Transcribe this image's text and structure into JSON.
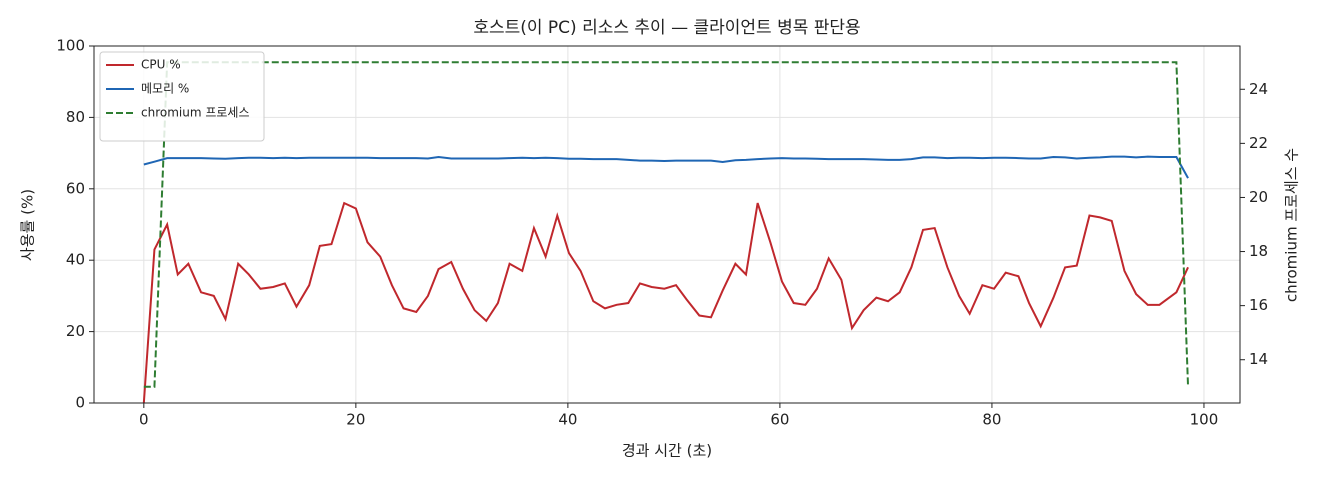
{
  "chart_data": {
    "type": "line",
    "title": "호스트(이 PC) 리소스 추이 — 클라이언트 병목 판단용",
    "xlabel": "경과 시간 (초)",
    "ylabel": "사용률 (%)",
    "y2label": "chromium 프로세스 수",
    "x": [
      0,
      1.0,
      2.2,
      3.2,
      4.2,
      5.4,
      6.6,
      7.7,
      8.9,
      9.9,
      11.0,
      12.2,
      13.3,
      14.4,
      15.6,
      16.6,
      17.7,
      18.9,
      20.0,
      21.1,
      22.3,
      23.4,
      24.5,
      25.7,
      26.8,
      27.8,
      29.0,
      30.1,
      31.2,
      32.3,
      33.4,
      34.5,
      35.7,
      36.8,
      37.9,
      39.0,
      40.1,
      41.2,
      42.4,
      43.5,
      44.6,
      45.7,
      46.8,
      47.9,
      49.1,
      50.2,
      51.2,
      52.4,
      53.5,
      54.6,
      55.8,
      56.8,
      57.9,
      59.1,
      60.2,
      61.3,
      62.4,
      63.5,
      64.6,
      65.8,
      66.8,
      67.9,
      69.1,
      70.2,
      71.3,
      72.4,
      73.5,
      74.6,
      75.8,
      76.9,
      77.9,
      79.1,
      80.2,
      81.3,
      82.5,
      83.5,
      84.6,
      85.8,
      86.9,
      88.0,
      89.2,
      90.2,
      91.3,
      92.5,
      93.6,
      94.7,
      95.8,
      97.4,
      98.5
    ],
    "series": [
      {
        "name": "CPU %",
        "color": "#c0282d",
        "axis": "y",
        "linestyle": "solid",
        "values": [
          0,
          43,
          50,
          36,
          39,
          31,
          30,
          23.5,
          39,
          36,
          32,
          32.5,
          33.5,
          27,
          33,
          44,
          44.5,
          56,
          54.5,
          45,
          41,
          33,
          26.5,
          25.5,
          30,
          37.5,
          39.5,
          32,
          26,
          23,
          28,
          39,
          37,
          49,
          41,
          52.5,
          42,
          37,
          28.5,
          26.5,
          27.5,
          28,
          33.5,
          32.5,
          32,
          33,
          29,
          24.5,
          24,
          31.5,
          39,
          36,
          56,
          45,
          34,
          28,
          27.5,
          32,
          40.5,
          34.5,
          21,
          26,
          29.5,
          28.5,
          31,
          38,
          48.5,
          49,
          38,
          30,
          25,
          33,
          32,
          36.5,
          35.5,
          28,
          21.5,
          29.5,
          38,
          38.5,
          52.5,
          52,
          51,
          37,
          30.5,
          27.5,
          27.5,
          31,
          38
        ]
      },
      {
        "name": "메모리 %",
        "color": "#1f66b4",
        "axis": "y",
        "linestyle": "solid",
        "values": [
          66.8,
          67.6,
          68.6,
          68.6,
          68.6,
          68.6,
          68.5,
          68.4,
          68.6,
          68.7,
          68.7,
          68.6,
          68.7,
          68.6,
          68.7,
          68.7,
          68.7,
          68.7,
          68.7,
          68.7,
          68.6,
          68.6,
          68.6,
          68.6,
          68.5,
          68.9,
          68.5,
          68.5,
          68.5,
          68.5,
          68.5,
          68.6,
          68.7,
          68.6,
          68.7,
          68.6,
          68.4,
          68.4,
          68.3,
          68.3,
          68.3,
          68.1,
          67.9,
          67.9,
          67.8,
          67.9,
          67.9,
          67.9,
          67.9,
          67.5,
          68.0,
          68.1,
          68.3,
          68.5,
          68.6,
          68.5,
          68.5,
          68.4,
          68.3,
          68.3,
          68.3,
          68.3,
          68.2,
          68.1,
          68.1,
          68.3,
          68.8,
          68.8,
          68.6,
          68.7,
          68.7,
          68.6,
          68.7,
          68.7,
          68.6,
          68.5,
          68.5,
          68.9,
          68.8,
          68.5,
          68.7,
          68.8,
          69.0,
          69.0,
          68.8,
          69.0,
          68.9,
          68.9,
          63
        ]
      },
      {
        "name": "chromium 프로세스",
        "color": "#2e7d32",
        "axis": "y2",
        "linestyle": "dashed",
        "values": [
          13,
          13,
          25,
          25,
          25,
          25,
          25,
          25,
          25,
          25,
          25,
          25,
          25,
          25,
          25,
          25,
          25,
          25,
          25,
          25,
          25,
          25,
          25,
          25,
          25,
          25,
          25,
          25,
          25,
          25,
          25,
          25,
          25,
          25,
          25,
          25,
          25,
          25,
          25,
          25,
          25,
          25,
          25,
          25,
          25,
          25,
          25,
          25,
          25,
          25,
          25,
          25,
          25,
          25,
          25,
          25,
          25,
          25,
          25,
          25,
          25,
          25,
          25,
          25,
          25,
          25,
          25,
          25,
          25,
          25,
          25,
          25,
          25,
          25,
          25,
          25,
          25,
          25,
          25,
          25,
          25,
          25,
          25,
          25,
          25,
          25,
          25,
          25,
          13
        ]
      }
    ],
    "xlim": [
      -4.7,
      103.4
    ],
    "xticks": [
      0,
      20,
      40,
      60,
      80,
      100
    ],
    "ylim": [
      0,
      100
    ],
    "yticks": [
      0,
      20,
      40,
      60,
      80,
      100
    ],
    "y2lim": [
      12.4,
      25.6
    ],
    "y2ticks": [
      14,
      16,
      18,
      20,
      22,
      24
    ],
    "grid": true,
    "legend": "upper left"
  }
}
